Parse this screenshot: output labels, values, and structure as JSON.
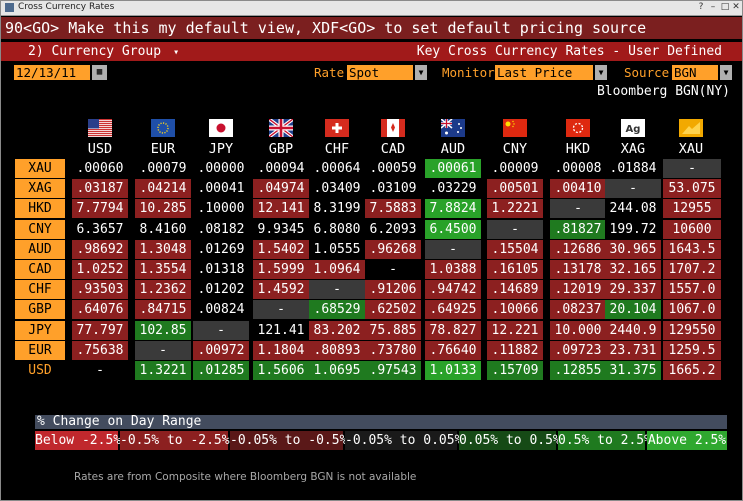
{
  "window": {
    "title": "Cross Currency Rates",
    "controls": [
      "?",
      "–",
      "□",
      "✕"
    ]
  },
  "command_line": "90<GO> Make this my default view, XDF<GO> to set default pricing source",
  "ribbon": {
    "menu": "2) Currency Group",
    "dropdown_glyph": "▾",
    "title": "Key Cross Currency Rates - User Defined"
  },
  "controls": {
    "date": "12/13/11",
    "rate_label": "Rate",
    "rate_value": "Spot",
    "monitor_label": "Monitor",
    "monitor_value": "Last Price w/",
    "source_label": "Source",
    "source_value": "BGN"
  },
  "pricing_source": "Bloomberg BGN(NY)",
  "columns": [
    "USD",
    "EUR",
    "JPY",
    "GBP",
    "CHF",
    "CAD",
    "AUD",
    "CNY",
    "HKD",
    "XAG",
    "XAU"
  ],
  "flags": [
    "us-flag",
    "eu-flag",
    "jp-flag",
    "gb-flag",
    "ch-flag",
    "ca-flag",
    "au-flag",
    "cn-flag",
    "hk-flag",
    "xag-ingot",
    "xau-ingot"
  ],
  "rows": [
    {
      "label": "XAU",
      "values": [
        ".00060",
        ".00079",
        ".00000",
        ".00094",
        ".00064",
        ".00059",
        ".00061",
        ".00009",
        ".00008",
        ".01884",
        "-"
      ]
    },
    {
      "label": "XAG",
      "values": [
        ".03187",
        ".04214",
        ".00041",
        ".04974",
        ".03409",
        ".03109",
        ".03229",
        ".00501",
        ".00410",
        "-",
        "53.075"
      ]
    },
    {
      "label": "HKD",
      "values": [
        "7.7794",
        "10.285",
        ".10000",
        "12.141",
        "8.3199",
        "7.5883",
        "7.8824",
        "1.2221",
        "-",
        "244.08",
        "12955"
      ]
    },
    {
      "label": "CNY",
      "values": [
        "6.3657",
        "8.4160",
        ".08182",
        "9.9345",
        "6.8080",
        "6.2093",
        "6.4500",
        "-",
        ".81827",
        "199.72",
        "10600"
      ]
    },
    {
      "label": "AUD",
      "values": [
        ".98692",
        "1.3048",
        ".01269",
        "1.5402",
        "1.0555",
        ".96268",
        "-",
        ".15504",
        ".12686",
        "30.965",
        "1643.5"
      ]
    },
    {
      "label": "CAD",
      "values": [
        "1.0252",
        "1.3554",
        ".01318",
        "1.5999",
        "1.0964",
        "-",
        "1.0388",
        ".16105",
        ".13178",
        "32.165",
        "1707.2"
      ]
    },
    {
      "label": "CHF",
      "values": [
        ".93503",
        "1.2362",
        ".01202",
        "1.4592",
        "-",
        ".91206",
        ".94742",
        ".14689",
        ".12019",
        "29.337",
        "1557.0"
      ]
    },
    {
      "label": "GBP",
      "values": [
        ".64076",
        ".84715",
        ".00824",
        "-",
        ".68529",
        ".62502",
        ".64925",
        ".10066",
        ".08237",
        "20.104",
        "1067.0"
      ]
    },
    {
      "label": "JPY",
      "values": [
        "77.797",
        "102.85",
        "-",
        "121.41",
        "83.202",
        "75.885",
        "78.827",
        "12.221",
        "10.000",
        "2440.9",
        "129550"
      ]
    },
    {
      "label": "EUR",
      "values": [
        ".75638",
        "-",
        ".00972",
        "1.1804",
        ".80893",
        ".73780",
        ".76640",
        ".11882",
        ".09723",
        "23.731",
        "1259.5"
      ]
    },
    {
      "label": "USD",
      "values": [
        "-",
        "1.3221",
        ".01285",
        "1.5606",
        "1.0695",
        ".97543",
        "1.0133",
        ".15709",
        ".12855",
        "31.375",
        "1665.2"
      ]
    }
  ],
  "cell_colors": [
    [
      "b",
      "b",
      "b",
      "b",
      "b",
      "b",
      "G",
      "b",
      "b",
      "b",
      "b"
    ],
    [
      "r",
      "r",
      "b",
      "r",
      "b",
      "b",
      "b",
      "r",
      "r",
      "b",
      "r"
    ],
    [
      "r",
      "r",
      "b",
      "r",
      "b",
      "r",
      "G",
      "r",
      "b",
      "b",
      "r"
    ],
    [
      "b",
      "b",
      "b",
      "b",
      "b",
      "b",
      "G",
      "b",
      "g",
      "b",
      "r"
    ],
    [
      "r",
      "r",
      "b",
      "r",
      "b",
      "r",
      "b",
      "r",
      "r",
      "r",
      "r"
    ],
    [
      "r",
      "r",
      "b",
      "r",
      "r",
      "b",
      "r",
      "r",
      "r",
      "r",
      "r"
    ],
    [
      "r",
      "r",
      "b",
      "r",
      "b",
      "r",
      "r",
      "r",
      "r",
      "r",
      "r"
    ],
    [
      "r",
      "r",
      "b",
      "b",
      "g",
      "r",
      "r",
      "r",
      "r",
      "g",
      "r"
    ],
    [
      "r",
      "g",
      "b",
      "b",
      "r",
      "r",
      "r",
      "r",
      "r",
      "r",
      "r"
    ],
    [
      "r",
      "b",
      "r",
      "r",
      "r",
      "r",
      "r",
      "r",
      "r",
      "r",
      "r"
    ],
    [
      "b",
      "g",
      "g",
      "g",
      "g",
      "g",
      "G",
      "g",
      "g",
      "g",
      "r"
    ]
  ],
  "palette": {
    "r": "#8c2020",
    "g": "#1f7a1f",
    "G": "#29a229",
    "b": "#000000",
    "dash": "#3a3a3a"
  },
  "legend": {
    "title": "% Change on Day Range",
    "segments": [
      {
        "label": "Below -2.5%",
        "color": "#c0282d"
      },
      {
        "label": "-0.5% to -2.5%",
        "color": "#8c2020"
      },
      {
        "label": "-0.05% to -0.5%",
        "color": "#5a1818"
      },
      {
        "label": "-0.05% to 0.05%",
        "color": "#1a1a1a"
      },
      {
        "label": "0.05% to 0.5%",
        "color": "#164a16"
      },
      {
        "label": "0.5% to 2.5%",
        "color": "#1f7a1f"
      },
      {
        "label": "Above 2.5%",
        "color": "#2fa82f"
      }
    ]
  },
  "footer": "Rates are from Composite where Bloomberg BGN is not available"
}
